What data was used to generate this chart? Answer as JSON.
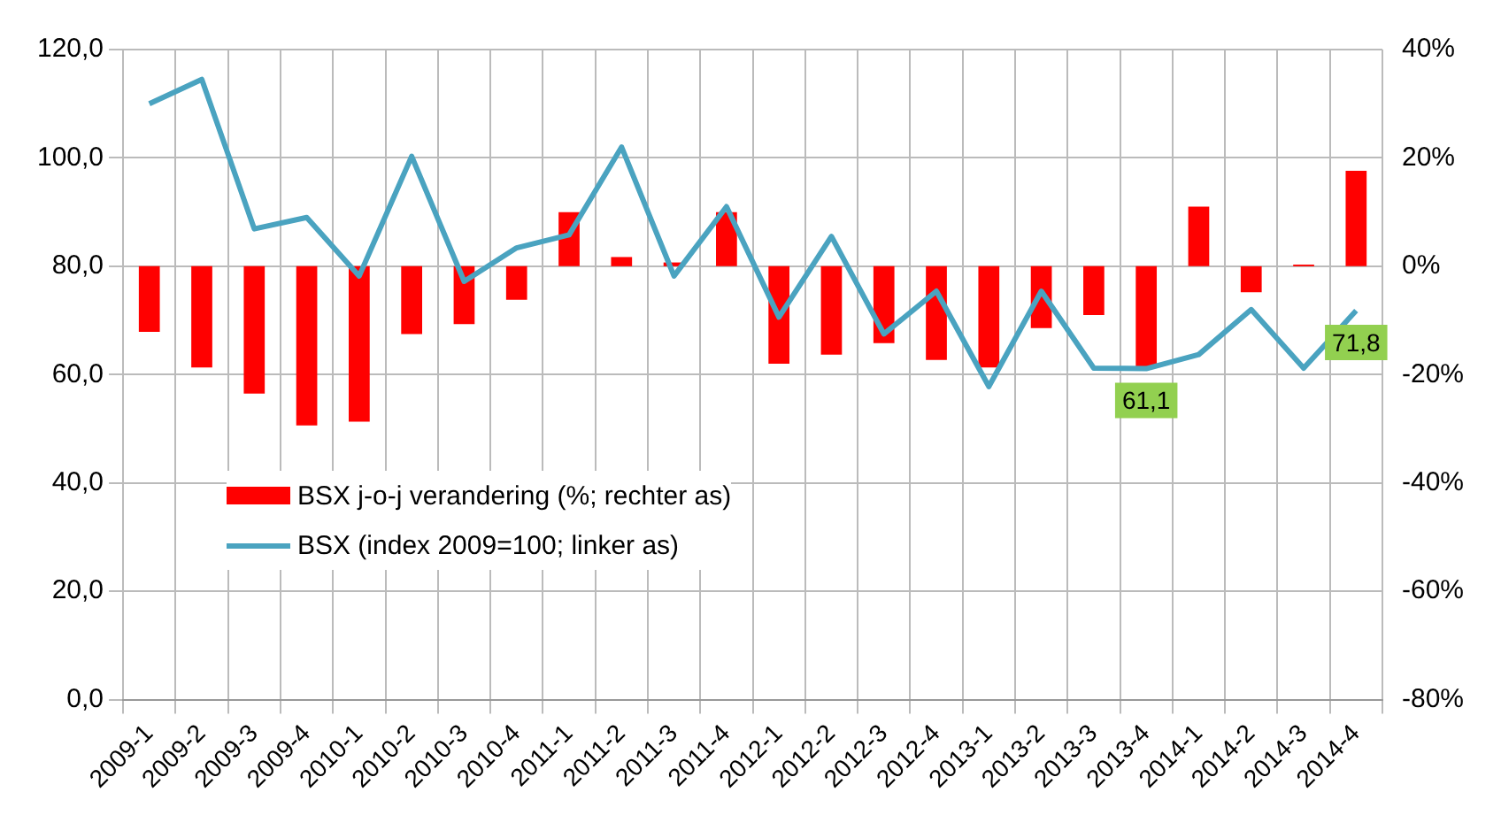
{
  "chart_data": {
    "type": "bar",
    "categories": [
      "2009-1",
      "2009-2",
      "2009-3",
      "2009-4",
      "2010-1",
      "2010-2",
      "2010-3",
      "2010-4",
      "2011-1",
      "2011-2",
      "2011-3",
      "2011-4",
      "2012-1",
      "2012-2",
      "2012-3",
      "2012-4",
      "2013-1",
      "2013-2",
      "2013-3",
      "2013-4",
      "2014-1",
      "2014-2",
      "2014-3",
      "2014-4"
    ],
    "series": [
      {
        "name": "BSX j-o-j verandering (%; rechter as)",
        "axis": "y2",
        "color": "#ff0000",
        "values": [
          -12.1,
          -18.7,
          -23.5,
          -29.4,
          -28.7,
          -12.5,
          -10.7,
          -6.2,
          10,
          1.7,
          0.7,
          10,
          -18,
          -16.3,
          -14.2,
          -17.3,
          -18.7,
          -11.4,
          -9,
          -18.7,
          11,
          -4.8,
          0.3,
          17.6
        ]
      },
      {
        "name": "BSX (index 2009=100; linker as)",
        "type": "line",
        "color": "#4aa3c0",
        "values": [
          110,
          114.5,
          86.9,
          89,
          78.2,
          100.3,
          77.2,
          83.4,
          85.8,
          102,
          78.2,
          91,
          70.6,
          85.5,
          67.5,
          75.4,
          57.8,
          75.4,
          61.2,
          61.1,
          63.7,
          72,
          61.2,
          71.8
        ]
      }
    ],
    "ylim": [
      0,
      120
    ],
    "yticks": [
      {
        "value": 0,
        "label": "0,0"
      },
      {
        "value": 20,
        "label": "20,0"
      },
      {
        "value": 40,
        "label": "40,0"
      },
      {
        "value": 60,
        "label": "60,0"
      },
      {
        "value": 80,
        "label": "80,0"
      },
      {
        "value": 100,
        "label": "100,0"
      },
      {
        "value": 120,
        "label": "120,0"
      }
    ],
    "y2lim": [
      -80,
      40
    ],
    "y2ticks": [
      {
        "value": -80,
        "label": "-80%"
      },
      {
        "value": -60,
        "label": "-60%"
      },
      {
        "value": -40,
        "label": "-40%"
      },
      {
        "value": -20,
        "label": "-20%"
      },
      {
        "value": 0,
        "label": "0%"
      },
      {
        "value": 20,
        "label": "20%"
      },
      {
        "value": 40,
        "label": "40%"
      }
    ],
    "annotations": [
      {
        "text": "61,1",
        "x": "2013-4",
        "y": 61.1
      },
      {
        "text": "71,8",
        "x": "2014-4",
        "y": 71.8
      }
    ],
    "grid": true,
    "legend": "bottom left",
    "marker": "none"
  }
}
